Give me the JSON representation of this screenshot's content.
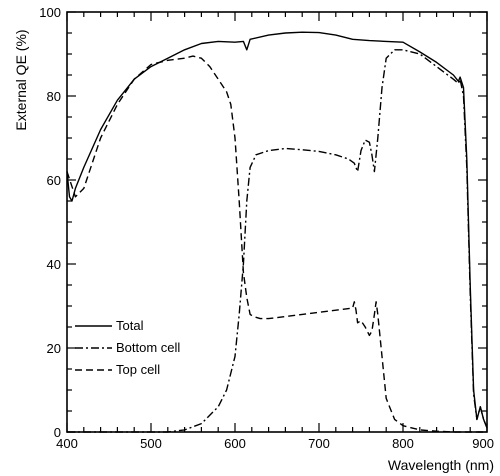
{
  "chart_data": {
    "type": "line",
    "xlabel": "Wavelength (nm)",
    "ylabel": "External QE (%)",
    "xlim": [
      400,
      900
    ],
    "ylim": [
      0,
      100
    ],
    "x_ticks": [
      "400",
      "500",
      "600",
      "700",
      "800",
      "900"
    ],
    "y_ticks": [
      "0",
      "20",
      "40",
      "60",
      "80",
      "100"
    ],
    "legend_position": "bottom-left",
    "series": [
      {
        "name": "Total",
        "line_style": "solid",
        "x": [
          400,
          403,
          406,
          410,
          420,
          440,
          460,
          480,
          500,
          520,
          540,
          560,
          580,
          600,
          610,
          612,
          614,
          618,
          640,
          660,
          680,
          700,
          720,
          740,
          760,
          780,
          800,
          820,
          840,
          860,
          866,
          868,
          872,
          876,
          880,
          884,
          888,
          892,
          896,
          900
        ],
        "y": [
          62,
          56,
          55,
          58,
          63,
          72,
          79,
          84,
          87,
          89,
          91,
          92.5,
          93,
          92.8,
          93,
          92,
          91,
          93.5,
          94.5,
          95,
          95.2,
          95.1,
          94.5,
          93.5,
          93.2,
          93,
          92.8,
          90.5,
          88,
          85,
          83.5,
          84.5,
          82,
          65,
          35,
          10,
          3,
          6,
          3,
          1
        ]
      },
      {
        "name": "Bottom cell",
        "line_style": "dash-dot",
        "x": [
          400,
          520,
          540,
          560,
          580,
          590,
          600,
          605,
          610,
          614,
          618,
          625,
          640,
          660,
          680,
          700,
          720,
          735,
          742,
          746,
          750,
          755,
          760,
          763,
          766,
          770,
          775,
          780,
          790,
          800,
          810,
          820,
          840,
          860,
          866,
          868,
          872,
          876,
          880,
          884,
          888,
          892,
          896,
          900
        ],
        "y": [
          0,
          0,
          0.5,
          2,
          6,
          10,
          18,
          28,
          40,
          55,
          63,
          66,
          67,
          67.5,
          67.2,
          66.8,
          66,
          65,
          64,
          62,
          67,
          69.5,
          69,
          66,
          62,
          70,
          82,
          89,
          91,
          91,
          90.5,
          90,
          87,
          84,
          83,
          84,
          80,
          63,
          33,
          9,
          3,
          6,
          3,
          1
        ]
      },
      {
        "name": "Top cell",
        "line_style": "dashed",
        "x": [
          400,
          410,
          420,
          440,
          460,
          480,
          500,
          520,
          540,
          550,
          560,
          570,
          580,
          590,
          595,
          600,
          605,
          610,
          614,
          618,
          622,
          630,
          640,
          660,
          680,
          700,
          720,
          740,
          742,
          744,
          746,
          750,
          755,
          760,
          763,
          766,
          768,
          770,
          775,
          780,
          790,
          800,
          820,
          840,
          860,
          900
        ],
        "y": [
          62,
          56,
          58,
          70,
          78,
          84,
          87.5,
          88.5,
          89,
          89.5,
          89,
          87,
          84,
          81,
          78,
          70,
          55,
          38,
          32,
          28,
          27.5,
          27,
          27,
          27.5,
          28,
          28.5,
          29,
          29.5,
          31,
          29,
          26,
          26.5,
          25,
          23,
          24,
          28,
          31,
          28,
          18,
          8,
          3,
          1.5,
          0.5,
          0.2,
          0,
          0
        ]
      }
    ]
  }
}
